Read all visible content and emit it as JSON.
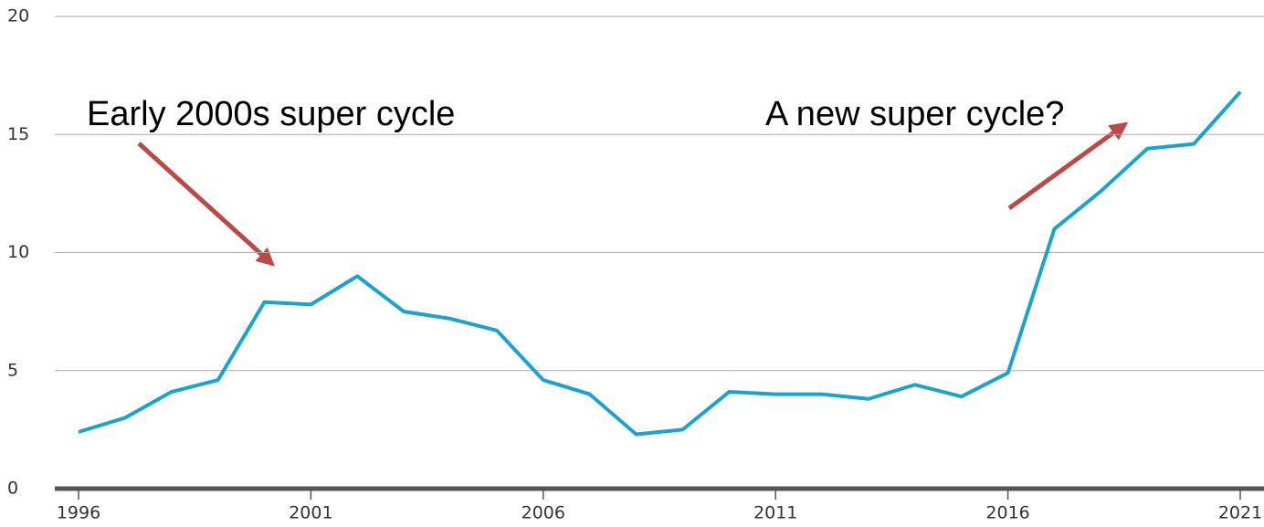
{
  "chart_data": {
    "type": "line",
    "annotations": [
      "Early 2000s super cycle",
      "A new super cycle?"
    ],
    "x": [
      1996,
      1997,
      1998,
      1999,
      2000,
      2001,
      2002,
      2003,
      2004,
      2005,
      2006,
      2007,
      2008,
      2009,
      2010,
      2011,
      2012,
      2013,
      2014,
      2015,
      2016,
      2017,
      2018,
      2019,
      2020,
      2021
    ],
    "series": [
      {
        "color": "#1aa3cc",
        "values": [
          2.4,
          3.0,
          4.1,
          4.6,
          7.9,
          7.8,
          9.0,
          7.5,
          7.2,
          6.7,
          4.6,
          4.0,
          2.3,
          2.5,
          4.1,
          4.0,
          4.0,
          3.8,
          4.4,
          3.9,
          4.9,
          11.0,
          12.6,
          14.4,
          14.6,
          16.8
        ]
      }
    ],
    "xlim": [
      1996,
      2021
    ],
    "xticks": [
      1996,
      2001,
      2006,
      2011,
      2016,
      2021
    ],
    "ylim": [
      0,
      20
    ],
    "yticks": [
      0,
      5,
      10,
      15,
      20
    ],
    "grid": true
  }
}
